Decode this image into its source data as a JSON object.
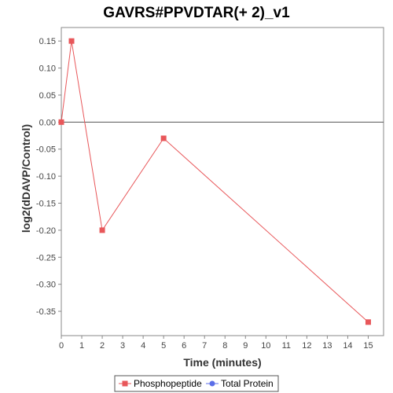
{
  "chart_data": {
    "type": "line",
    "title": "GAVRS#PPVDTAR(+ 2)_v1",
    "xlabel": "Time (minutes)",
    "ylabel": "log2(dDAVP/Control)",
    "xlim": [
      0,
      15.75
    ],
    "ylim": [
      -0.395,
      0.175
    ],
    "x_ticks": [
      0,
      1,
      2,
      3,
      4,
      5,
      6,
      7,
      8,
      9,
      10,
      11,
      12,
      13,
      14,
      15
    ],
    "y_ticks": [
      0.15,
      0.1,
      0.05,
      0.0,
      -0.05,
      -0.1,
      -0.15,
      -0.2,
      -0.25,
      -0.3,
      -0.35
    ],
    "y_tick_labels": [
      "0.15",
      "0.10",
      "0.05",
      "0.00",
      "-0.05",
      "-0.10",
      "-0.15",
      "-0.20",
      "-0.25",
      "-0.30",
      "-0.35"
    ],
    "zero_line": true,
    "grid": false,
    "legend_position": "bottom",
    "series": [
      {
        "name": "Phosphopeptide",
        "color": "#e8575a",
        "marker": "square",
        "x": [
          0,
          0.5,
          2,
          5,
          15
        ],
        "y": [
          0.0,
          0.15,
          -0.2,
          -0.03,
          -0.37
        ]
      },
      {
        "name": "Total Protein",
        "color": "#5b6ee8",
        "marker": "circle",
        "x": [],
        "y": []
      }
    ]
  }
}
